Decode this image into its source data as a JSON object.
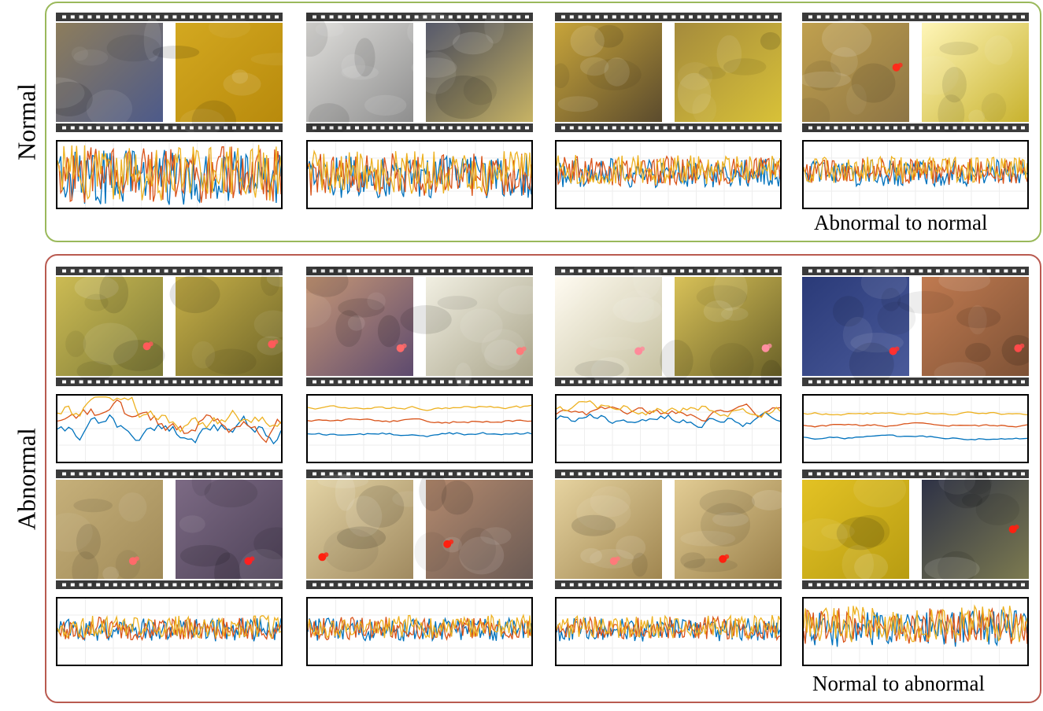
{
  "groups": [
    {
      "label": "Normal",
      "caption": "Abnormal to normal",
      "border_color": "#9ab95b",
      "rows": [
        {
          "clips": [
            {
              "frames": [
                {
                  "colors": [
                    "#8d7d5c",
                    "#4d5a8a"
                  ],
                  "spot": false
                },
                {
                  "colors": [
                    "#d3a820",
                    "#b88a0c"
                  ],
                  "spot": false
                }
              ],
              "signal": {
                "amplitude": 0.85,
                "baseline": 0.5,
                "spread": 0.1,
                "smooth": false,
                "seed": 11
              }
            },
            {
              "frames": [
                {
                  "colors": [
                    "#e0dfdc",
                    "#8e8e8e"
                  ],
                  "spot": false
                },
                {
                  "colors": [
                    "#44475a",
                    "#c7b364"
                  ],
                  "spot": false
                }
              ],
              "signal": {
                "amplitude": 0.65,
                "baseline": 0.5,
                "spread": 0.1,
                "smooth": false,
                "seed": 23
              }
            },
            {
              "frames": [
                {
                  "colors": [
                    "#c7a43a",
                    "#5b4b2d"
                  ],
                  "spot": false
                },
                {
                  "colors": [
                    "#a58b3c",
                    "#d8c138"
                  ],
                  "spot": false
                }
              ],
              "signal": {
                "amplitude": 0.45,
                "baseline": 0.45,
                "spread": 0.08,
                "smooth": false,
                "seed": 37
              }
            },
            {
              "frames": [
                {
                  "colors": [
                    "#c0a04e",
                    "#8d7545"
                  ],
                  "spot": true,
                  "spot_x": 0.88,
                  "spot_y": 0.45,
                  "spot_color": "#ff2a1a"
                },
                {
                  "colors": [
                    "#fff6b8",
                    "#c8b22e"
                  ],
                  "spot": false
                }
              ],
              "signal": {
                "amplitude": 0.4,
                "baseline": 0.45,
                "spread": 0.08,
                "smooth": false,
                "seed": 41
              }
            }
          ]
        }
      ]
    },
    {
      "label": "Abnormal",
      "caption": "Normal to abnormal",
      "border_color": "#b95a50",
      "rows": [
        {
          "clips": [
            {
              "frames": [
                {
                  "colors": [
                    "#ccbb53",
                    "#7d7a38"
                  ],
                  "spot": true,
                  "spot_x": 0.85,
                  "spot_y": 0.7,
                  "spot_color": "#ff5a5a"
                },
                {
                  "colors": [
                    "#c7b048",
                    "#6d6428"
                  ],
                  "spot": true,
                  "spot_x": 0.9,
                  "spot_y": 0.68,
                  "spot_color": "#ff5a5a"
                }
              ],
              "signal": {
                "amplitude": 0.25,
                "baseline": 0.4,
                "spread": 0.12,
                "smooth": true,
                "seed": 53
              }
            },
            {
              "frames": [
                {
                  "colors": [
                    "#c69776",
                    "#5d4a6e"
                  ],
                  "spot": true,
                  "spot_x": 0.88,
                  "spot_y": 0.72,
                  "spot_color": "#ff6a6a"
                },
                {
                  "colors": [
                    "#f1efe2",
                    "#a9a48a"
                  ],
                  "spot": true,
                  "spot_x": 0.88,
                  "spot_y": 0.75,
                  "spot_color": "#ff7a7a"
                }
              ],
              "signal": {
                "amplitude": 0.04,
                "baseline": 0.38,
                "spread": 0.2,
                "smooth": true,
                "seed": 61
              }
            },
            {
              "frames": [
                {
                  "colors": [
                    "#fffbf0",
                    "#c7c2a3"
                  ],
                  "spot": true,
                  "spot_x": 0.78,
                  "spot_y": 0.75,
                  "spot_color": "#ff8a9a"
                },
                {
                  "colors": [
                    "#d8c158",
                    "#6a6128"
                  ],
                  "spot": true,
                  "spot_x": 0.85,
                  "spot_y": 0.72,
                  "spot_color": "#ff8fa0"
                }
              ],
              "signal": {
                "amplitude": 0.12,
                "baseline": 0.28,
                "spread": 0.08,
                "smooth": true,
                "seed": 67
              }
            },
            {
              "frames": [
                {
                  "colors": [
                    "#2a3a78",
                    "#4a5a9a"
                  ],
                  "spot": true,
                  "spot_x": 0.85,
                  "spot_y": 0.75,
                  "spot_color": "#ff3030"
                },
                {
                  "colors": [
                    "#c07a50",
                    "#7e5236"
                  ],
                  "spot": true,
                  "spot_x": 0.9,
                  "spot_y": 0.72,
                  "spot_color": "#ff4a4a"
                }
              ],
              "signal": {
                "amplitude": 0.03,
                "baseline": 0.45,
                "spread": 0.18,
                "smooth": true,
                "seed": 71
              }
            }
          ]
        },
        {
          "clips": [
            {
              "frames": [
                {
                  "colors": [
                    "#c6b07a",
                    "#a08a58"
                  ],
                  "spot": true,
                  "spot_x": 0.72,
                  "spot_y": 0.82,
                  "spot_color": "#ff6a6a"
                },
                {
                  "colors": [
                    "#7c6a84",
                    "#4e4258"
                  ],
                  "spot": true,
                  "spot_x": 0.68,
                  "spot_y": 0.82,
                  "spot_color": "#ff2020"
                }
              ],
              "signal": {
                "amplitude": 0.35,
                "baseline": 0.45,
                "spread": 0.08,
                "smooth": false,
                "seed": 83
              }
            },
            {
              "frames": [
                {
                  "colors": [
                    "#e3d3a4",
                    "#a08a60"
                  ],
                  "spot": true,
                  "spot_x": 0.15,
                  "spot_y": 0.78,
                  "spot_color": "#ff2010"
                },
                {
                  "colors": [
                    "#b48a6e",
                    "#6a5a54"
                  ],
                  "spot": true,
                  "spot_x": 0.2,
                  "spot_y": 0.65,
                  "spot_color": "#ff2010"
                }
              ],
              "signal": {
                "amplitude": 0.35,
                "baseline": 0.45,
                "spread": 0.08,
                "smooth": false,
                "seed": 89
              }
            },
            {
              "frames": [
                {
                  "colors": [
                    "#e6d3a0",
                    "#a08650"
                  ],
                  "spot": true,
                  "spot_x": 0.55,
                  "spot_y": 0.82,
                  "spot_color": "#ff7a7a"
                },
                {
                  "colors": [
                    "#e2cc94",
                    "#9a804a"
                  ],
                  "spot": true,
                  "spot_x": 0.45,
                  "spot_y": 0.8,
                  "spot_color": "#ff2010"
                }
              ],
              "signal": {
                "amplitude": 0.35,
                "baseline": 0.45,
                "spread": 0.08,
                "smooth": false,
                "seed": 97
              }
            },
            {
              "frames": [
                {
                  "colors": [
                    "#e3c224",
                    "#b89c12"
                  ],
                  "spot": false
                },
                {
                  "colors": [
                    "#2e3246",
                    "#7c7a50"
                  ],
                  "spot": true,
                  "spot_x": 0.85,
                  "spot_y": 0.5,
                  "spot_color": "#ff2010"
                }
              ],
              "signal": {
                "amplitude": 0.55,
                "baseline": 0.42,
                "spread": 0.12,
                "smooth": false,
                "seed": 101
              }
            }
          ]
        }
      ]
    }
  ],
  "series_colors": [
    "#0072bd",
    "#d95319",
    "#edb120"
  ]
}
